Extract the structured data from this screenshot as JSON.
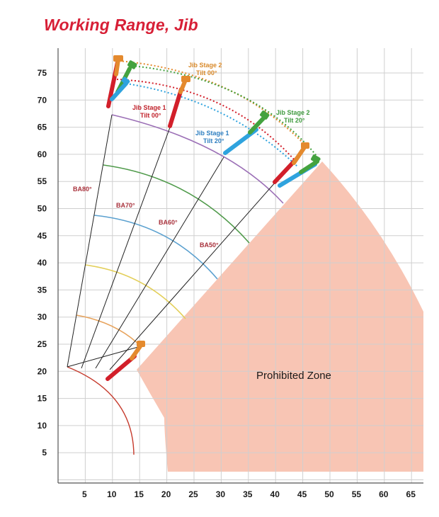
{
  "title": "Working Range, Jib",
  "x_ticks": [
    "5",
    "10",
    "15",
    "20",
    "25",
    "30",
    "35",
    "40",
    "45",
    "50",
    "55",
    "60",
    "65"
  ],
  "y_ticks": [
    "75",
    "70",
    "65",
    "60",
    "55",
    "50",
    "45",
    "40",
    "35",
    "30",
    "25",
    "20",
    "15",
    "10",
    "5"
  ],
  "boom_angles": [
    "BA80°",
    "BA70°",
    "BA60°",
    "BA50°"
  ],
  "jib_labels": [
    {
      "line1": "Jib Stage 2",
      "line2": "Tilt 00°",
      "color": "#d98a2b"
    },
    {
      "line1": "Jib Stage 1",
      "line2": "Tilt 00°",
      "color": "#c0222b"
    },
    {
      "line1": "Jib Stage 1",
      "line2": "Tilt 20°",
      "color": "#2f7fc0"
    },
    {
      "line1": "Jib Stage 2",
      "line2": "Tilt 20°",
      "color": "#3f9a3f"
    }
  ],
  "zone_label": "Prohibited Zone",
  "colors": {
    "title": "#d71f36",
    "zone_fill": "#f8c5b4",
    "grid": "#cfcfcf",
    "stage2_tilt0": "#e48a2e",
    "stage1_tilt0": "#d21f2a",
    "stage1_tilt20": "#2fa3de",
    "stage2_tilt20": "#44a23f",
    "arc_purple": "#9b6fb6",
    "arc_green": "#4f9a4a",
    "arc_blue": "#5aa0cf",
    "arc_yellow": "#e3cf5a",
    "arc_orange": "#e7a35c",
    "arc_red": "#c63a2c"
  }
}
